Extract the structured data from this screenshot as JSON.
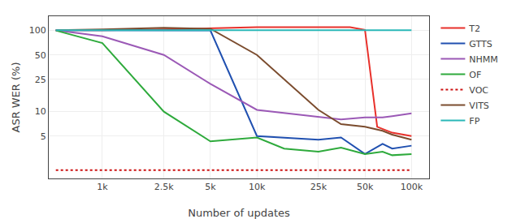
{
  "chart_data": {
    "type": "line",
    "xlabel": "Number of updates",
    "ylabel": "ASR WER (%)",
    "log": true,
    "grid": true,
    "legend": "right",
    "xlim": [
      450,
      130000
    ],
    "ylim": [
      1.5,
      150
    ],
    "xticks": [
      {
        "value": 1000,
        "label": "1k"
      },
      {
        "value": 2500,
        "label": "2.5k"
      },
      {
        "value": 5000,
        "label": "5k"
      },
      {
        "value": 10000,
        "label": "10k"
      },
      {
        "value": 25000,
        "label": "25k"
      },
      {
        "value": 50000,
        "label": "50k"
      },
      {
        "value": 100000,
        "label": "100k"
      }
    ],
    "yticks": [
      5,
      10,
      25,
      50,
      100
    ],
    "series": [
      {
        "name": "T2",
        "color": "#e8302a",
        "line_style": "solid",
        "x": [
          500,
          1000,
          2500,
          5000,
          10000,
          25000,
          40000,
          50000,
          60000,
          75000,
          100000
        ],
        "values": [
          101,
          101,
          103,
          107,
          110,
          110,
          110,
          102,
          6.5,
          5.5,
          5.0
        ]
      },
      {
        "name": "GTTS",
        "color": "#2050b0",
        "line_style": "solid",
        "x": [
          500,
          1000,
          2500,
          5000,
          10000,
          25000,
          35000,
          50000,
          65000,
          75000,
          100000
        ],
        "values": [
          101,
          101,
          100,
          100,
          5.0,
          4.5,
          4.8,
          3.0,
          4.0,
          3.5,
          3.8
        ]
      },
      {
        "name": "NHMM",
        "color": "#9b59b6",
        "line_style": "solid",
        "x": [
          500,
          1000,
          2500,
          5000,
          10000,
          25000,
          35000,
          50000,
          65000,
          75000,
          100000
        ],
        "values": [
          101,
          85,
          50,
          22,
          10.5,
          8.5,
          8.0,
          8.5,
          8.5,
          8.8,
          9.5
        ]
      },
      {
        "name": "OF",
        "color": "#2eaa3c",
        "line_style": "solid",
        "x": [
          500,
          1000,
          2500,
          5000,
          10000,
          15000,
          25000,
          35000,
          50000,
          65000,
          75000,
          100000
        ],
        "values": [
          100,
          70,
          10.0,
          4.3,
          4.8,
          3.5,
          3.2,
          3.6,
          3.0,
          3.2,
          2.9,
          3.0
        ]
      },
      {
        "name": "VOC",
        "color": "#cc1111",
        "line_style": "dotted",
        "x": [
          500,
          100000
        ],
        "values": [
          1.9,
          1.9
        ]
      },
      {
        "name": "VITS",
        "color": "#7b4c2e",
        "line_style": "solid",
        "x": [
          500,
          1000,
          2500,
          5000,
          10000,
          25000,
          35000,
          50000,
          65000,
          75000,
          100000
        ],
        "values": [
          101,
          103,
          108,
          105,
          50,
          10.5,
          7.0,
          6.5,
          5.8,
          5.2,
          4.5
        ]
      },
      {
        "name": "FP",
        "color": "#2ab8b8",
        "line_style": "solid",
        "x": [
          500,
          100000
        ],
        "values": [
          101,
          101
        ]
      }
    ]
  }
}
